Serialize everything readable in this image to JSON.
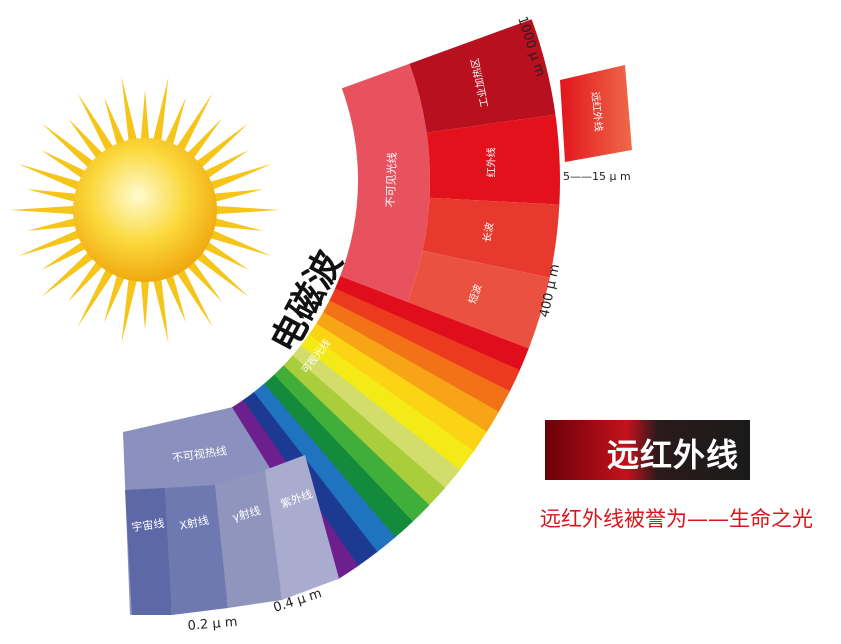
{
  "title": "电磁波",
  "colors": {
    "sun": "#f7c81b",
    "sun_core": "#fff3a0",
    "accent_red": "#d8161e"
  },
  "infrared_group": {
    "inner_label": "不可见光线",
    "inner_color": "#e8525e",
    "segments": [
      {
        "label": "工业加热区",
        "color": "#b8101f"
      },
      {
        "label": "红外线",
        "color": "#e3111b"
      },
      {
        "label": "长波",
        "color": "#e8392f"
      },
      {
        "label": "短波",
        "color": "#ea5140"
      }
    ]
  },
  "visible_light": {
    "label": "可视光线",
    "bands": [
      "#e00d1c",
      "#ec3a1e",
      "#f27218",
      "#f7a416",
      "#fbd414",
      "#f4ea16",
      "#d2dd6c",
      "#a9cd3b",
      "#3fae3b",
      "#138a3c",
      "#1f73bf",
      "#1d3a92",
      "#6d1f8e"
    ]
  },
  "invisible_heat": {
    "label": "不可视热线",
    "color": "#8b91bf",
    "columns": [
      {
        "label": "宇宙线",
        "color": "#5c69a6"
      },
      {
        "label": "X射线",
        "color": "#6e79b2"
      },
      {
        "label": "γ射线",
        "color": "#9095bd"
      },
      {
        "label": "紫外线",
        "color": "#aaaccf"
      }
    ]
  },
  "scale_labels": {
    "top": "1000 μ m",
    "mid": "400 μ m",
    "uv": "0.4 μ m",
    "xray": "0.2 μ m"
  },
  "far_infrared": {
    "box_label": "远红外线",
    "range": "5——15 μ m",
    "color": "#e8362c"
  },
  "callout": {
    "title": "远红外线",
    "slogan": "远红外线被誉为——生命之光"
  }
}
